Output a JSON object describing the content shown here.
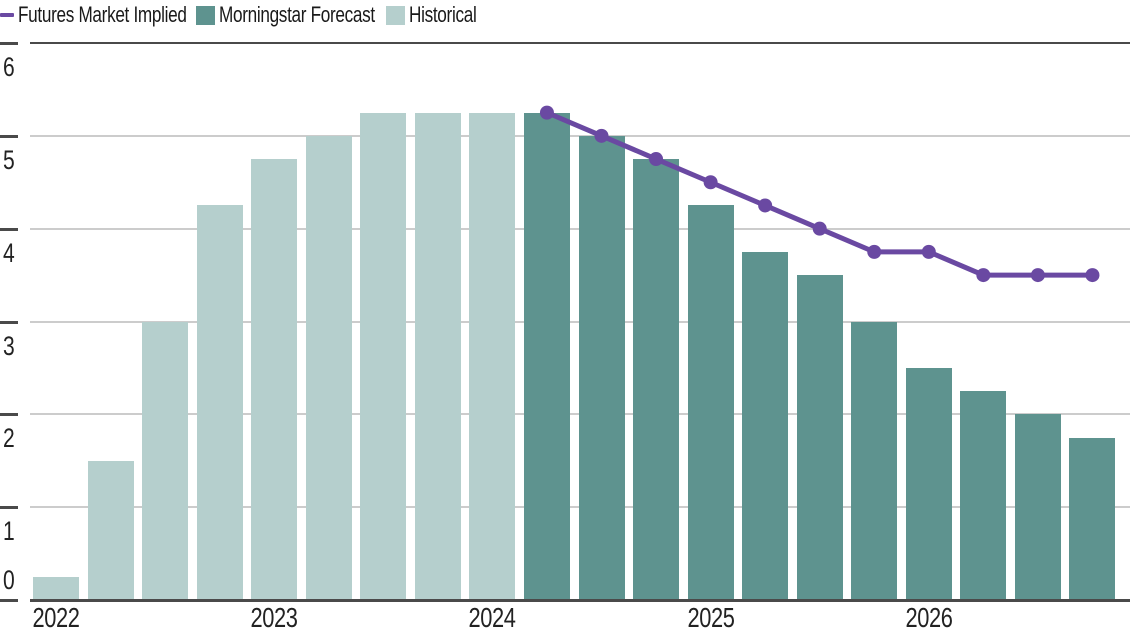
{
  "legend": {
    "items": [
      {
        "label": "Futures Market Implied",
        "swatch": "line",
        "color": "#6a49a2"
      },
      {
        "label": "Morningstar Forecast",
        "swatch": "square",
        "color": "#5e938f"
      },
      {
        "label": "Historical",
        "swatch": "square",
        "color": "#b5cfcd"
      }
    ]
  },
  "colors": {
    "historical_bar": "#b5cfcd",
    "forecast_bar": "#5e938f",
    "futures_line": "#6a49a2",
    "axis_dark": "#4a4a4a",
    "grid_light": "#cccccc",
    "label_text": "#222222"
  },
  "chart_data": {
    "type": "bar",
    "title": "",
    "xlabel": "",
    "ylabel": "",
    "ylim": [
      0,
      6
    ],
    "yticks": [
      0,
      1,
      2,
      3,
      4,
      5,
      6
    ],
    "grid": true,
    "legend_position": "top-left",
    "categories": [
      "2022 Q1",
      "2022 Q2",
      "2022 Q3",
      "2022 Q4",
      "2023 Q1",
      "2023 Q2",
      "2023 Q3",
      "2023 Q4",
      "2024 Q1",
      "2024 Q2",
      "2024 Q3",
      "2024 Q4",
      "2025 Q1",
      "2025 Q2",
      "2025 Q3",
      "2025 Q4",
      "2026 Q1",
      "2026 Q2",
      "2026 Q3",
      "2026 Q4"
    ],
    "x_tick_labels": [
      "2022",
      "2023",
      "2024",
      "2025",
      "2026"
    ],
    "x_tick_indices": [
      0,
      4,
      8,
      12,
      16
    ],
    "series": [
      {
        "name": "Historical",
        "type": "bar",
        "values": [
          0.25,
          1.5,
          3.0,
          4.25,
          4.75,
          5.0,
          5.25,
          5.25,
          5.25,
          null,
          null,
          null,
          null,
          null,
          null,
          null,
          null,
          null,
          null,
          null
        ]
      },
      {
        "name": "Morningstar Forecast",
        "type": "bar",
        "values": [
          null,
          null,
          null,
          null,
          null,
          null,
          null,
          null,
          null,
          5.25,
          5.0,
          4.75,
          4.25,
          3.75,
          3.5,
          3.0,
          2.5,
          2.25,
          2.0,
          1.75
        ]
      },
      {
        "name": "Futures Market Implied",
        "type": "line",
        "values": [
          null,
          null,
          null,
          null,
          null,
          null,
          null,
          null,
          null,
          5.25,
          5.0,
          4.75,
          4.5,
          4.25,
          4.0,
          3.75,
          3.75,
          3.5,
          3.5,
          3.5
        ]
      }
    ]
  }
}
